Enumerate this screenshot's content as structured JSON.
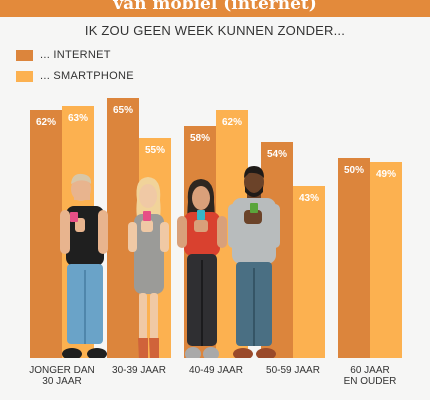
{
  "banner": {
    "title": "van mobiel (internet)"
  },
  "chart_data": {
    "type": "bar",
    "title": "IK ZOU GEEN WEEK KUNNEN ZONDER...",
    "categories": [
      [
        "JONGER DAN",
        "30 JAAR"
      ],
      [
        "30-39 JAAR"
      ],
      [
        "40-49 JAAR"
      ],
      [
        "50-59 JAAR"
      ],
      [
        "60 JAAR",
        "EN OUDER"
      ]
    ],
    "series": [
      {
        "name": "... INTERNET",
        "color": "#dc853c",
        "values": [
          62,
          65,
          58,
          54,
          50
        ]
      },
      {
        "name": "... SMARTPHONE",
        "color": "#fcb150",
        "values": [
          63,
          55,
          62,
          43,
          49
        ]
      }
    ],
    "value_suffix": "%",
    "ylim": [
      0,
      65
    ],
    "grid": false,
    "legend_position": "top-left"
  },
  "illustrations": [
    {
      "name": "young-man-with-phone",
      "category_index": 0
    },
    {
      "name": "blonde-woman-with-phone",
      "category_index": 1
    },
    {
      "name": "dark-haired-woman-with-phone",
      "category_index": 2
    },
    {
      "name": "bearded-man-with-phone",
      "category_index": 3
    }
  ]
}
